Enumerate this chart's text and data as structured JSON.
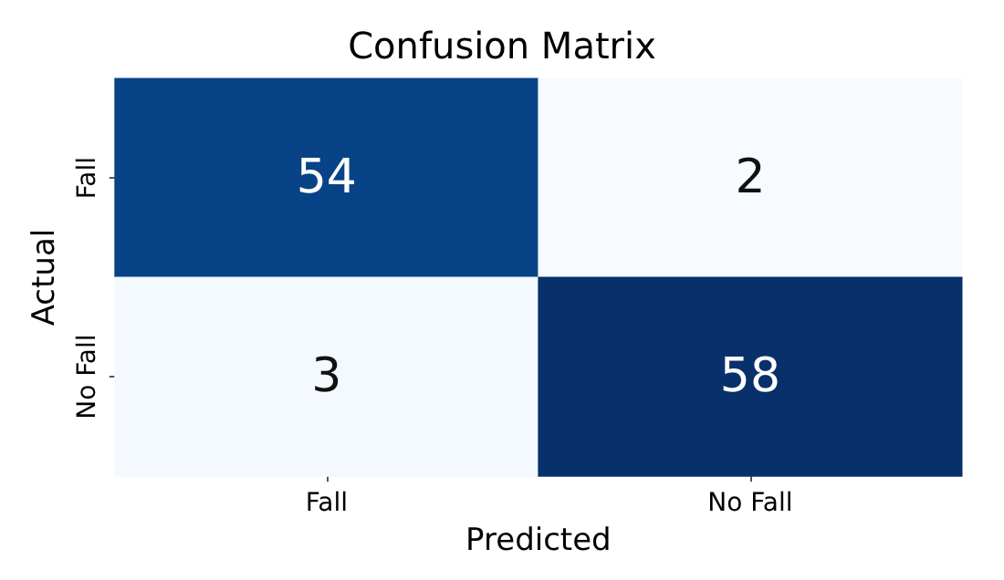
{
  "chart_data": {
    "type": "heatmap",
    "title": "Confusion Matrix",
    "xlabel": "Predicted",
    "ylabel": "Actual",
    "categories": [
      "Fall",
      "No Fall"
    ],
    "y_categories": [
      "Fall",
      "No Fall"
    ],
    "cells": [
      [
        54,
        2
      ],
      [
        3,
        58
      ]
    ],
    "data_labels": true
  }
}
